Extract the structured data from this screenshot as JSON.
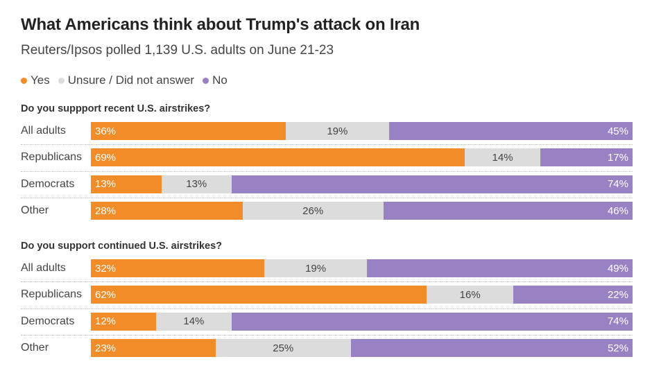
{
  "title": "What Americans think about Trump's attack on Iran",
  "subtitle": "Reuters/Ipsos polled 1,139 U.S. adults on June 21-23",
  "legend": [
    {
      "label": "Yes",
      "color": "#F28C28"
    },
    {
      "label": "Unsure / Did not answer",
      "color": "#DCDCDC"
    },
    {
      "label": "No",
      "color": "#9882C4"
    }
  ],
  "chart_data": [
    {
      "type": "bar",
      "orientation": "horizontal-stacked-100",
      "title": "Do you suppport recent U.S. airstrikes?",
      "categories": [
        "All adults",
        "Republicans",
        "Democrats",
        "Other"
      ],
      "series": [
        {
          "name": "Yes",
          "values": [
            36,
            69,
            13,
            28
          ]
        },
        {
          "name": "Unsure / Did not answer",
          "values": [
            19,
            14,
            13,
            26
          ]
        },
        {
          "name": "No",
          "values": [
            45,
            17,
            74,
            46
          ]
        }
      ],
      "unit": "%"
    },
    {
      "type": "bar",
      "orientation": "horizontal-stacked-100",
      "title": "Do you support continued U.S. airstrikes?",
      "categories": [
        "All adults",
        "Republicans",
        "Democrats",
        "Other"
      ],
      "series": [
        {
          "name": "Yes",
          "values": [
            32,
            62,
            12,
            23
          ]
        },
        {
          "name": "Unsure / Did not answer",
          "values": [
            19,
            16,
            14,
            25
          ]
        },
        {
          "name": "No",
          "values": [
            49,
            22,
            74,
            52
          ]
        }
      ],
      "unit": "%"
    }
  ]
}
